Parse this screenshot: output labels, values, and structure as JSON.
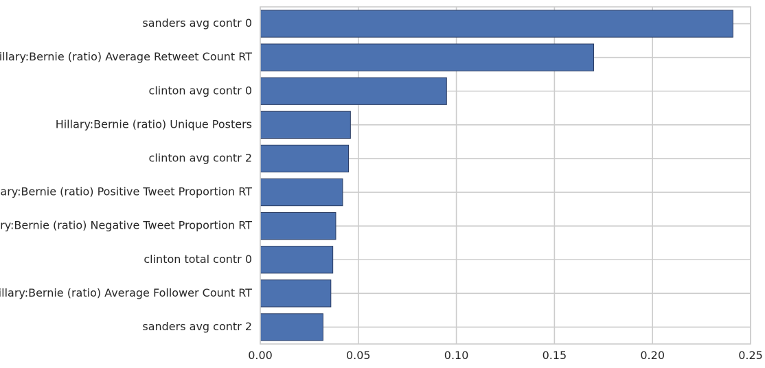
{
  "chart_data": {
    "type": "bar",
    "orientation": "horizontal",
    "categories": [
      "sanders avg contr 0",
      "Hillary:Bernie (ratio) Average Retweet Count RT",
      "clinton avg contr 0",
      "Hillary:Bernie (ratio) Unique Posters",
      "clinton avg contr 2",
      "Hillary:Bernie (ratio) Positive Tweet Proportion RT",
      "Hillary:Bernie (ratio) Negative Tweet Proportion RT",
      "clinton total contr 0",
      "Hillary:Bernie (ratio) Average Follower Count RT",
      "sanders avg contr 2"
    ],
    "values": [
      0.241,
      0.17,
      0.095,
      0.046,
      0.045,
      0.042,
      0.0385,
      0.037,
      0.036,
      0.032
    ],
    "title": "",
    "xlabel": "",
    "ylabel": "",
    "xlim": [
      0.0,
      0.25
    ],
    "xticks": [
      "0.00",
      "0.05",
      "0.10",
      "0.15",
      "0.20",
      "0.25"
    ],
    "grid": true,
    "legend": "none",
    "colors": {
      "bar_fill": "#4c72b0",
      "bar_edge": "#2c3e64",
      "grid": "#cccccc",
      "frame": "#cccccc",
      "text": "#262626",
      "background": "#ffffff"
    }
  }
}
